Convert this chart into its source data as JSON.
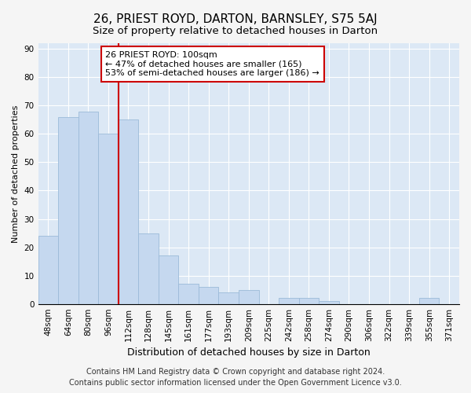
{
  "title": "26, PRIEST ROYD, DARTON, BARNSLEY, S75 5AJ",
  "subtitle": "Size of property relative to detached houses in Darton",
  "xlabel": "Distribution of detached houses by size in Darton",
  "ylabel": "Number of detached properties",
  "categories": [
    "48sqm",
    "64sqm",
    "80sqm",
    "96sqm",
    "112sqm",
    "128sqm",
    "145sqm",
    "161sqm",
    "177sqm",
    "193sqm",
    "209sqm",
    "225sqm",
    "242sqm",
    "258sqm",
    "274sqm",
    "290sqm",
    "306sqm",
    "322sqm",
    "339sqm",
    "355sqm",
    "371sqm"
  ],
  "values": [
    24,
    66,
    68,
    60,
    65,
    25,
    17,
    7,
    6,
    4,
    5,
    0,
    2,
    2,
    1,
    0,
    0,
    0,
    0,
    2,
    0
  ],
  "bar_color": "#c5d8ef",
  "bar_edge_color": "#9bbad8",
  "vline_x": 3.5,
  "vline_color": "#cc0000",
  "ylim": [
    0,
    92
  ],
  "yticks": [
    0,
    10,
    20,
    30,
    40,
    50,
    60,
    70,
    80,
    90
  ],
  "annotation_text": "26 PRIEST ROYD: 100sqm\n← 47% of detached houses are smaller (165)\n53% of semi-detached houses are larger (186) →",
  "annotation_box_facecolor": "#ffffff",
  "annotation_box_edgecolor": "#cc0000",
  "footer_line1": "Contains HM Land Registry data © Crown copyright and database right 2024.",
  "footer_line2": "Contains public sector information licensed under the Open Government Licence v3.0.",
  "fig_facecolor": "#f5f5f5",
  "plot_facecolor": "#dce8f5",
  "grid_color": "#ffffff",
  "title_fontsize": 11,
  "subtitle_fontsize": 9.5,
  "xlabel_fontsize": 9,
  "ylabel_fontsize": 8,
  "tick_fontsize": 7.5,
  "annotation_fontsize": 8,
  "footer_fontsize": 7
}
